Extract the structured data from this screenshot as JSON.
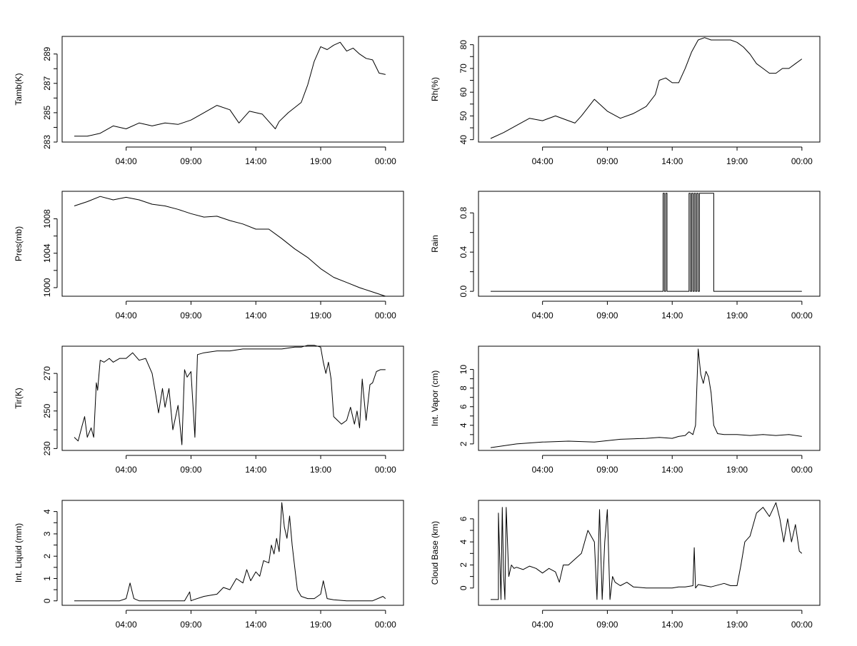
{
  "chart_data": [
    {
      "type": "line",
      "ylabel": "Tamb(K)",
      "x_ticks": [
        "04:00",
        "09:00",
        "14:00",
        "19:00",
        "00:00"
      ],
      "y_ticks": [
        "283",
        "285",
        "287",
        "289"
      ],
      "ylim": [
        283,
        290.2
      ],
      "xlim": [
        0,
        25
      ],
      "grid": false,
      "series": [
        {
          "x": [
            0,
            1,
            2,
            3,
            4,
            5,
            6,
            7,
            8,
            9,
            10,
            11,
            12,
            12.7,
            13.5,
            14.5,
            15.5,
            15.8,
            16.5,
            17.5,
            18,
            18.5,
            19,
            19.5,
            20,
            20.5,
            21,
            21.5,
            22,
            22.5,
            23,
            23.5,
            24
          ],
          "y": [
            283.4,
            283.4,
            283.6,
            284.1,
            283.9,
            284.3,
            284.1,
            284.3,
            284.2,
            284.5,
            285,
            285.5,
            285.2,
            284.3,
            285.1,
            284.9,
            283.9,
            284.4,
            285,
            285.7,
            286.9,
            288.5,
            289.5,
            289.3,
            289.6,
            289.8,
            289.2,
            289.4,
            289,
            288.7,
            288.6,
            287.7,
            287.6
          ]
        }
      ]
    },
    {
      "type": "line",
      "ylabel": "Rh(%)",
      "x_ticks": [
        "04:00",
        "09:00",
        "14:00",
        "19:00",
        "00:00"
      ],
      "y_ticks": [
        "40",
        "50",
        "60",
        "70",
        "80"
      ],
      "ylim": [
        39,
        83.5
      ],
      "xlim": [
        0,
        25
      ],
      "grid": false,
      "series": [
        {
          "x": [
            0,
            1,
            2,
            3,
            4,
            5,
            6,
            6.5,
            7,
            8,
            9,
            10,
            11,
            12,
            12.7,
            13,
            13.5,
            14,
            14.5,
            15,
            15.5,
            16,
            16.5,
            17,
            17.5,
            18,
            18.5,
            19,
            19.5,
            20,
            20.5,
            21,
            21.5,
            22,
            22.5,
            23,
            23.5,
            24
          ],
          "y": [
            40.5,
            43,
            46,
            49,
            48,
            50,
            48,
            47,
            50,
            57,
            52,
            49,
            51,
            54,
            59,
            65,
            66,
            64,
            64,
            70,
            77,
            82,
            83,
            82,
            82,
            82,
            82,
            81,
            79,
            76,
            72,
            70,
            68,
            68,
            70,
            70,
            72,
            74
          ]
        }
      ]
    },
    {
      "type": "line",
      "ylabel": "Pres(mb)",
      "x_ticks": [
        "04:00",
        "09:00",
        "14:00",
        "19:00",
        "00:00"
      ],
      "y_ticks": [
        "1000",
        "1004",
        "1008"
      ],
      "ylim": [
        999,
        1011.2
      ],
      "xlim": [
        0,
        25
      ],
      "grid": false,
      "series": [
        {
          "x": [
            0,
            1,
            2,
            3,
            4,
            5,
            6,
            7,
            8,
            9,
            10,
            11,
            12,
            13,
            14,
            15,
            16,
            17,
            18,
            19,
            20,
            21,
            22,
            23,
            24
          ],
          "y": [
            1009.5,
            1010,
            1010.6,
            1010.2,
            1010.5,
            1010.2,
            1009.7,
            1009.5,
            1009.1,
            1008.6,
            1008.2,
            1008.3,
            1007.8,
            1007.4,
            1006.8,
            1006.8,
            1005.7,
            1004.5,
            1003.5,
            1002.2,
            1001.2,
            1000.6,
            1000,
            999.5,
            999
          ]
        }
      ]
    },
    {
      "type": "line",
      "ylabel": "Rain",
      "x_ticks": [
        "04:00",
        "09:00",
        "14:00",
        "19:00",
        "00:00"
      ],
      "y_ticks": [
        "0.0",
        "0.4",
        "0.8"
      ],
      "ylim": [
        -0.05,
        1.02
      ],
      "xlim": [
        0,
        25
      ],
      "grid": false,
      "series": [
        {
          "x": [
            0,
            13.3,
            13.3,
            13.4,
            13.4,
            13.5,
            13.5,
            13.6,
            13.6,
            13.7,
            13.7,
            15.3,
            15.3,
            15.4,
            15.4,
            15.5,
            15.5,
            15.6,
            15.6,
            15.7,
            15.7,
            15.8,
            15.8,
            15.9,
            15.9,
            16,
            16,
            16.1,
            16.1,
            16.2,
            16.2,
            17.2,
            17.2,
            24
          ],
          "y": [
            0,
            0,
            1,
            1,
            0,
            0,
            1,
            1,
            0,
            0,
            0,
            0,
            1,
            1,
            0,
            0,
            1,
            1,
            0,
            0,
            1,
            1,
            0,
            0,
            1,
            1,
            0,
            0,
            1,
            1,
            1,
            1,
            0,
            0
          ]
        }
      ]
    },
    {
      "type": "line",
      "ylabel": "Tir(K)",
      "x_ticks": [
        "04:00",
        "09:00",
        "14:00",
        "19:00",
        "00:00"
      ],
      "y_ticks": [
        "230",
        "250",
        "270"
      ],
      "ylim": [
        229,
        284.5
      ],
      "xlim": [
        0,
        25
      ],
      "grid": false,
      "series": [
        {
          "x": [
            0,
            0.3,
            0.6,
            0.8,
            1,
            1.3,
            1.5,
            1.7,
            1.8,
            2,
            2.3,
            2.7,
            3,
            3.5,
            4,
            4.5,
            5,
            5.5,
            6,
            6.3,
            6.5,
            6.8,
            7,
            7.3,
            7.6,
            8,
            8.3,
            8.5,
            8.7,
            9,
            9.3,
            9.5,
            10,
            11,
            12,
            13,
            14,
            15,
            16,
            17,
            17.5,
            18,
            18.5,
            19,
            19.2,
            19.4,
            19.6,
            19.8,
            20,
            20.3,
            20.6,
            21,
            21.3,
            21.6,
            21.8,
            22,
            22.2,
            22.5,
            22.8,
            23,
            23.3,
            23.6,
            24
          ],
          "y": [
            236,
            234,
            242,
            247,
            236,
            241,
            236,
            265,
            261,
            277,
            276,
            278,
            276,
            278,
            278,
            281,
            277,
            278,
            270,
            258,
            249,
            262,
            252,
            262,
            240,
            253,
            232,
            272,
            268,
            271,
            236,
            280,
            281,
            282,
            282,
            283,
            283,
            283,
            283,
            284,
            284,
            285,
            285,
            284,
            276,
            270,
            276,
            267,
            247,
            245,
            243,
            245,
            252,
            243,
            250,
            241,
            267,
            245,
            264,
            265,
            271,
            272,
            272
          ]
        }
      ]
    },
    {
      "type": "line",
      "ylabel": "Int. Vapor (cm)",
      "x_ticks": [
        "04:00",
        "09:00",
        "14:00",
        "19:00",
        "00:00"
      ],
      "y_ticks": [
        "2",
        "4",
        "6",
        "8",
        "10"
      ],
      "ylim": [
        1.3,
        12.5
      ],
      "xlim": [
        0,
        25
      ],
      "grid": false,
      "series": [
        {
          "x": [
            0,
            2,
            4,
            6,
            8,
            10,
            12,
            13,
            14,
            14.5,
            15,
            15.3,
            15.6,
            15.8,
            16,
            16.2,
            16.4,
            16.6,
            16.8,
            17,
            17.2,
            17.5,
            18,
            19,
            20,
            21,
            22,
            23,
            24
          ],
          "y": [
            1.6,
            2,
            2.2,
            2.3,
            2.2,
            2.5,
            2.6,
            2.7,
            2.6,
            2.8,
            2.9,
            3.3,
            3,
            4,
            12.2,
            9.5,
            8.5,
            9.8,
            9.2,
            7.5,
            4,
            3.1,
            3,
            3,
            2.9,
            3,
            2.9,
            3,
            2.8
          ]
        }
      ]
    },
    {
      "type": "line",
      "ylabel": "Int. Liquid (mm)",
      "x_ticks": [
        "04:00",
        "09:00",
        "14:00",
        "19:00",
        "00:00"
      ],
      "y_ticks": [
        "0",
        "1",
        "2",
        "3",
        "4"
      ],
      "ylim": [
        -0.2,
        4.5
      ],
      "xlim": [
        0,
        25
      ],
      "grid": false,
      "series": [
        {
          "x": [
            0,
            3.5,
            4,
            4.3,
            4.6,
            5,
            7,
            8.5,
            8.9,
            9,
            9.2,
            10,
            11,
            11.5,
            12,
            12.5,
            13,
            13.3,
            13.6,
            14,
            14.3,
            14.6,
            15,
            15.2,
            15.4,
            15.6,
            15.8,
            16,
            16.2,
            16.4,
            16.6,
            16.8,
            17,
            17.2,
            17.5,
            18,
            18.5,
            19,
            19.2,
            19.5,
            20,
            21,
            22,
            23,
            23.8,
            24
          ],
          "y": [
            0,
            0,
            0.1,
            0.8,
            0.1,
            0,
            0,
            0,
            0.4,
            0,
            0.05,
            0.2,
            0.3,
            0.6,
            0.5,
            1,
            0.8,
            1.4,
            0.9,
            1.3,
            1.1,
            1.8,
            1.7,
            2.5,
            2.1,
            2.8,
            2.2,
            4.4,
            3.3,
            2.8,
            3.8,
            2.5,
            1.5,
            0.5,
            0.2,
            0.1,
            0.1,
            0.3,
            0.9,
            0.1,
            0.05,
            0,
            0,
            0,
            0.2,
            0.1
          ]
        }
      ]
    },
    {
      "type": "line",
      "ylabel": "Cloud Base (km)",
      "x_ticks": [
        "04:00",
        "09:00",
        "14:00",
        "19:00",
        "00:00"
      ],
      "y_ticks": [
        "0",
        "2",
        "4",
        "6"
      ],
      "ylim": [
        -1.5,
        7.6
      ],
      "xlim": [
        0,
        25
      ],
      "grid": false,
      "series": [
        {
          "x": [
            0,
            0.6,
            0.6,
            0.8,
            0.9,
            1,
            1.1,
            1.2,
            1.4,
            1.6,
            1.8,
            2,
            2.5,
            3,
            3.5,
            4,
            4.5,
            5,
            5.3,
            5.6,
            6,
            6.5,
            7,
            7.5,
            8,
            8.2,
            8.4,
            8.6,
            8.8,
            9,
            9.2,
            9.4,
            9.6,
            10,
            10.5,
            11,
            12,
            13,
            14,
            14.5,
            15,
            15.6,
            15.7,
            15.8,
            16,
            17,
            18,
            18.5,
            19,
            19.3,
            19.6,
            20,
            20.5,
            21,
            21.5,
            22,
            22.3,
            22.6,
            22.9,
            23.2,
            23.5,
            23.8,
            24
          ],
          "y": [
            -1,
            -1,
            6.5,
            -1,
            7,
            1,
            -1,
            7,
            1,
            2,
            1.7,
            1.8,
            1.6,
            1.9,
            1.7,
            1.3,
            1.7,
            1.4,
            0.5,
            2,
            2,
            2.5,
            3,
            5,
            4,
            -1,
            6.8,
            -1,
            4,
            6.8,
            -1,
            1,
            0.5,
            0.2,
            0.5,
            0.1,
            0,
            0,
            0,
            0.1,
            0.1,
            0.2,
            3.5,
            0,
            0.3,
            0.1,
            0.4,
            0.2,
            0.2,
            2,
            4,
            4.5,
            6.5,
            7,
            6.2,
            7.4,
            6,
            4,
            6,
            4,
            5.5,
            3.2,
            3
          ]
        }
      ]
    }
  ]
}
